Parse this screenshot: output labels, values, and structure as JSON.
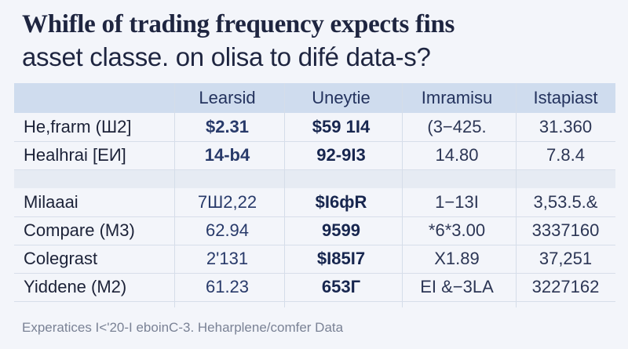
{
  "title": {
    "line1": "Whifle of trading frequency expects fins",
    "line2": "asset classe. on olisa to difé data-s?"
  },
  "colors": {
    "background": "#f3f5fa",
    "header_band": "#cfdcee",
    "text": "#1d2642",
    "footer_text": "#7a8295"
  },
  "chart_data": {
    "type": "table",
    "columns": [
      "",
      "Learsid",
      "Uneytie",
      "Imramisu",
      "Istapiast"
    ],
    "rows": [
      [
        "He,frarm (Ш2]",
        "$2.31",
        "$59 1I4",
        "(3−425.",
        "31.360"
      ],
      [
        "Healhrai [ЕИ]",
        "14-b4",
        "92-9I3",
        "14.80",
        "7.8.4"
      ],
      [
        "Milaaai",
        "7Ш2,22",
        "$I6фR",
        "1−13I",
        "3,53.5.&"
      ],
      [
        "Compare (M3)",
        "62.94",
        "9599",
        "*6*3.00",
        "3337160"
      ],
      [
        "Colegrast",
        "2'131",
        "$I85I7",
        "X1.89",
        "37,251"
      ],
      [
        "Yiddene (M2)",
        "61.23",
        "653Г",
        "ЕI &−3LA",
        "3227162"
      ]
    ],
    "footer": "Experatices I<'20-I eboinC-3. Heharplene/comfer Data"
  }
}
